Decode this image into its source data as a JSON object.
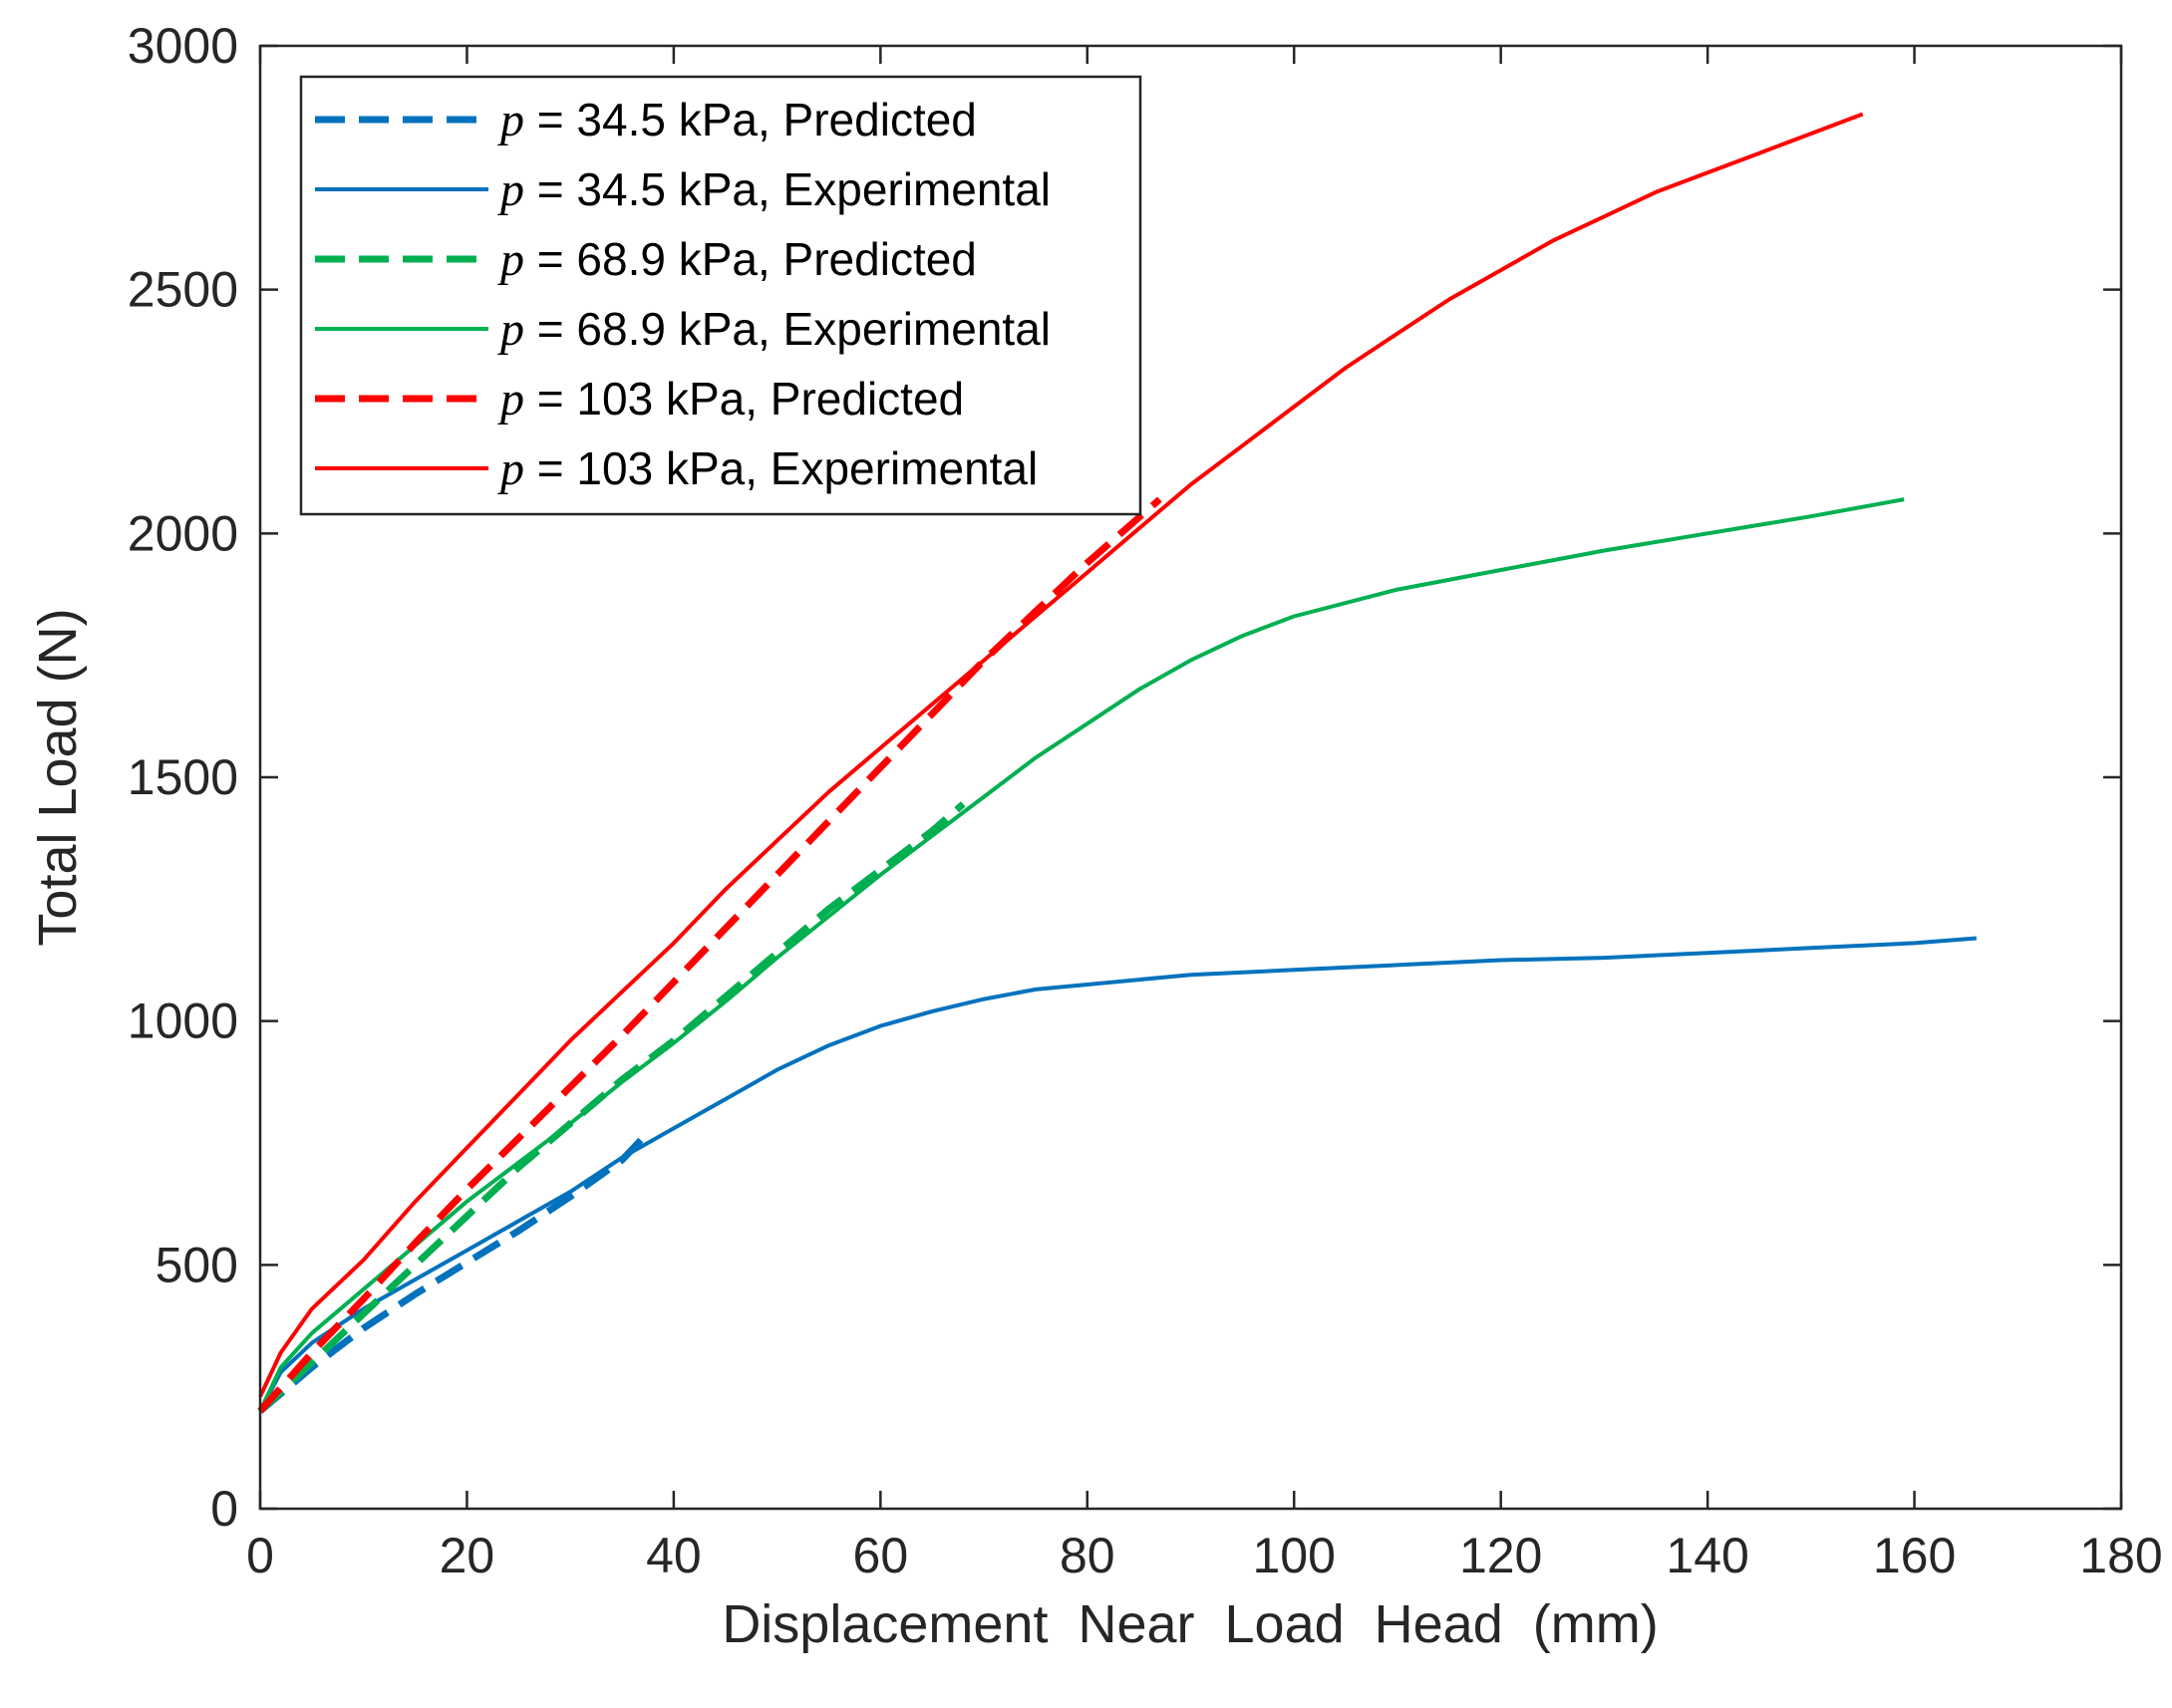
{
  "chart_data": {
    "type": "line",
    "title": "",
    "xlabel": "Displacement  Near  Load  Head  (mm)",
    "ylabel": "Total Load (N)",
    "xlim": [
      0,
      180
    ],
    "ylim": [
      0,
      3000
    ],
    "xticks": [
      0,
      20,
      40,
      60,
      80,
      100,
      120,
      140,
      160,
      180
    ],
    "yticks": [
      0,
      500,
      1000,
      1500,
      2000,
      2500,
      3000
    ],
    "grid": false,
    "legend_position": "top-left",
    "series": [
      {
        "name": "p = 34.5 kPa, Predicted",
        "legend_symbol": "p",
        "legend_text": " = 34.5 kPa, Predicted",
        "color": "#0072BD",
        "style": "dashed",
        "x": [
          0,
          5,
          10,
          15,
          20,
          25,
          30,
          35,
          37
        ],
        "y": [
          200,
          290,
          370,
          440,
          505,
          570,
          640,
          715,
          760
        ]
      },
      {
        "name": "p = 34.5 kPa, Experimental",
        "legend_symbol": "p",
        "legend_text": " = 34.5 kPa, Experimental",
        "color": "#0072BD",
        "style": "solid",
        "x": [
          0,
          2,
          5,
          10,
          15,
          20,
          25,
          30,
          35,
          40,
          45,
          50,
          55,
          60,
          65,
          70,
          75,
          80,
          90,
          100,
          110,
          120,
          130,
          140,
          150,
          160,
          166
        ],
        "y": [
          200,
          280,
          340,
          410,
          470,
          530,
          590,
          650,
          720,
          780,
          840,
          900,
          950,
          990,
          1020,
          1045,
          1065,
          1075,
          1095,
          1105,
          1115,
          1125,
          1130,
          1140,
          1150,
          1160,
          1170
        ]
      },
      {
        "name": "p = 68.9 kPa, Predicted",
        "legend_symbol": "p",
        "legend_text": " = 68.9 kPa, Predicted",
        "color": "#00B050",
        "style": "dashed",
        "x": [
          0,
          5,
          10,
          15,
          20,
          25,
          30,
          35,
          40,
          45,
          50,
          55,
          60,
          65,
          68
        ],
        "y": [
          200,
          300,
          400,
          500,
          600,
          700,
          790,
          880,
          960,
          1050,
          1140,
          1230,
          1310,
          1390,
          1445
        ]
      },
      {
        "name": "p = 68.9 kPa, Experimental",
        "legend_symbol": "p",
        "legend_text": " = 68.9 kPa, Experimental",
        "color": "#00B050",
        "style": "solid",
        "x": [
          0,
          2,
          5,
          10,
          15,
          20,
          25,
          30,
          35,
          40,
          45,
          50,
          55,
          60,
          65,
          70,
          75,
          80,
          85,
          90,
          95,
          100,
          110,
          120,
          130,
          140,
          150,
          159
        ],
        "y": [
          200,
          290,
          360,
          450,
          540,
          630,
          710,
          790,
          875,
          955,
          1040,
          1130,
          1215,
          1300,
          1380,
          1460,
          1540,
          1610,
          1680,
          1740,
          1790,
          1830,
          1885,
          1925,
          1965,
          2000,
          2035,
          2070
        ]
      },
      {
        "name": "p = 103 kPa, Predicted",
        "legend_symbol": "p",
        "legend_text": " = 103 kPa, Predicted",
        "color": "#FF0000",
        "style": "dashed",
        "x": [
          0,
          5,
          10,
          15,
          20,
          25,
          30,
          35,
          40,
          45,
          50,
          55,
          60,
          65,
          70,
          75,
          80,
          87
        ],
        "y": [
          200,
          320,
          430,
          545,
          655,
          760,
          865,
          970,
          1080,
          1190,
          1300,
          1410,
          1520,
          1630,
          1740,
          1840,
          1940,
          2070
        ]
      },
      {
        "name": "p = 103 kPa, Experimental",
        "legend_symbol": "p",
        "legend_text": " = 103 kPa, Experimental",
        "color": "#FF0000",
        "style": "solid",
        "x": [
          0,
          2,
          5,
          10,
          15,
          20,
          25,
          30,
          35,
          40,
          45,
          50,
          55,
          60,
          65,
          70,
          75,
          80,
          85,
          90,
          95,
          100,
          105,
          110,
          115,
          120,
          125,
          130,
          135,
          140,
          145,
          150,
          155
        ],
        "y": [
          230,
          320,
          410,
          510,
          630,
          740,
          850,
          960,
          1060,
          1160,
          1270,
          1370,
          1470,
          1560,
          1650,
          1740,
          1830,
          1920,
          2010,
          2100,
          2180,
          2260,
          2340,
          2410,
          2480,
          2540,
          2600,
          2650,
          2700,
          2740,
          2780,
          2820,
          2860
        ]
      }
    ]
  }
}
